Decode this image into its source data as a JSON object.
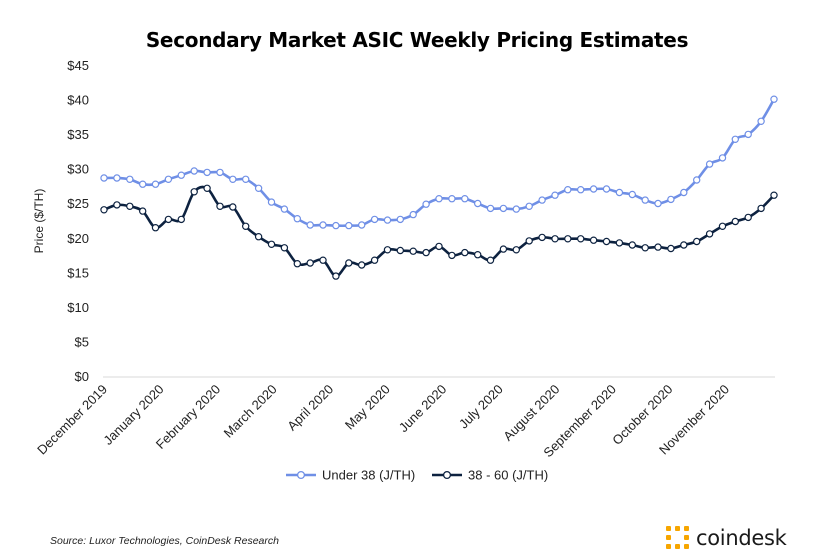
{
  "chart_data": {
    "type": "line",
    "title": "Secondary Market ASIC Weekly Pricing Estimates",
    "ylabel": "Price ($/TH)",
    "xlabel": "",
    "ylim": [
      0,
      45
    ],
    "yticks": [
      "$0",
      "$5",
      "$10",
      "$15",
      "$20",
      "$25",
      "$30",
      "$35",
      "$40",
      "$45"
    ],
    "grid": false,
    "legend_position": "bottom",
    "x_tick_labels": [
      "December 2019",
      "January 2020",
      "February 2020",
      "March 2020",
      "April 2020",
      "May 2020",
      "June 2020",
      "July 2020",
      "August 2020",
      "September 2020",
      "October 2020",
      "November 2020"
    ],
    "series": [
      {
        "name": "Under 38 (J/TH)",
        "color": "#6f8fe6",
        "values": [
          28.8,
          28.8,
          28.6,
          27.9,
          27.9,
          28.6,
          29.2,
          29.8,
          29.6,
          29.6,
          28.6,
          28.6,
          27.3,
          25.3,
          24.3,
          22.9,
          22.0,
          22.0,
          21.9,
          21.9,
          22.0,
          22.8,
          22.7,
          22.8,
          23.5,
          25.0,
          25.8,
          25.8,
          25.8,
          25.1,
          24.4,
          24.4,
          24.3,
          24.7,
          25.6,
          26.3,
          27.1,
          27.1,
          27.2,
          27.2,
          26.7,
          26.4,
          25.6,
          25.1,
          25.7,
          26.7,
          28.5,
          30.8,
          31.7,
          34.4,
          35.1,
          37.0,
          40.2
        ]
      },
      {
        "name": "38 - 60 (J/TH)",
        "color": "#0d2240",
        "values": [
          24.2,
          24.9,
          24.7,
          24.0,
          21.6,
          22.8,
          22.8,
          26.8,
          27.3,
          24.7,
          24.6,
          21.8,
          20.3,
          19.2,
          18.7,
          16.4,
          16.5,
          16.9,
          14.6,
          16.5,
          16.2,
          16.9,
          18.4,
          18.3,
          18.2,
          18.0,
          18.9,
          17.6,
          18.0,
          17.7,
          16.9,
          18.5,
          18.4,
          19.7,
          20.2,
          20.0,
          20.0,
          20.0,
          19.8,
          19.6,
          19.4,
          19.1,
          18.7,
          18.8,
          18.6,
          19.1,
          19.6,
          20.7,
          21.8,
          22.5,
          23.1,
          24.4,
          26.3
        ]
      }
    ]
  },
  "footer": {
    "source": "Source: Luxor Technologies, CoinDesk Research",
    "brand": "coindesk"
  }
}
